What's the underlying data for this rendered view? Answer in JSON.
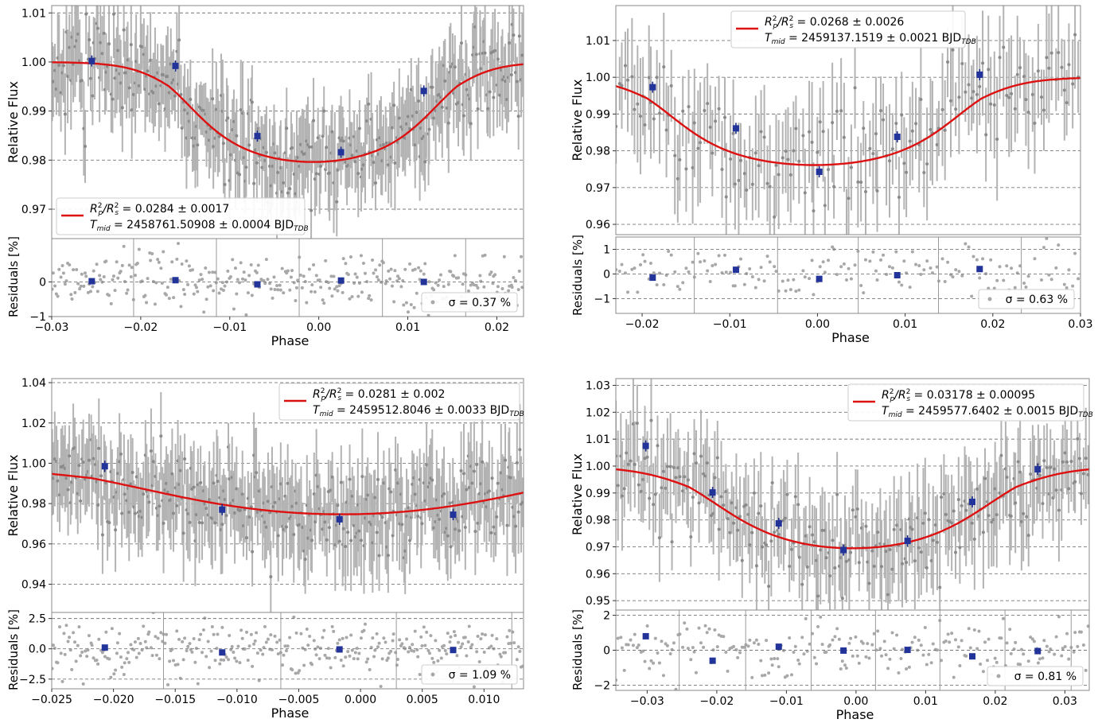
{
  "chart_data": [
    {
      "type": "scatter",
      "xlabel": "Phase",
      "ylabel": "Relative Flux",
      "residual_ylabel": "Residuals [%]",
      "xlim": [
        -0.03,
        0.023
      ],
      "ylim": [
        0.964,
        1.0115
      ],
      "yticks": [
        0.97,
        0.98,
        0.99,
        1.0,
        1.01
      ],
      "xticks": [
        -0.03,
        -0.02,
        -0.01,
        0.0,
        0.01,
        0.02
      ],
      "res_ylim": [
        -1.0,
        1.25
      ],
      "res_yticks": [
        -1,
        0
      ],
      "model": {
        "t1": -0.0158,
        "t2": 0.0145,
        "depth": 0.0205,
        "sharp": 0.0026
      },
      "binned": [
        {
          "x": -0.0255,
          "y": 1.0002,
          "res": 0.02
        },
        {
          "x": -0.0161,
          "y": 0.9992,
          "res": 0.05
        },
        {
          "x": -0.0069,
          "y": 0.9849,
          "res": -0.07
        },
        {
          "x": 0.0025,
          "y": 0.9816,
          "res": 0.04
        },
        {
          "x": 0.0118,
          "y": 0.9941,
          "res": 0.0
        }
      ],
      "legend": {
        "l1": " = 0.0284 ± 0.0017",
        "l2": " = 2458761.50908 ± 0.0004 BJD"
      },
      "sigma": "σ = 0.37 %",
      "scatter": {
        "n": 330,
        "noise": 0.0045,
        "err": 0.0075,
        "seed": 11
      }
    },
    {
      "type": "scatter",
      "xlabel": "Phase",
      "ylabel": "Relative Flux",
      "residual_ylabel": "Residuals [%]",
      "xlim": [
        -0.023,
        0.03
      ],
      "ylim": [
        0.9572,
        1.0195
      ],
      "yticks": [
        0.96,
        0.97,
        0.98,
        0.99,
        1.0,
        1.01
      ],
      "xticks": [
        -0.02,
        -0.01,
        0.0,
        0.01,
        0.02,
        0.03
      ],
      "xtick_labels": [
        "−0.02",
        "−0.01",
        "0.00",
        "0.01",
        "0.02",
        "0.03"
      ],
      "res_ylim": [
        -1.6,
        1.5
      ],
      "res_yticks": [
        -1,
        0,
        1
      ],
      "model": {
        "t1": -0.0182,
        "t2": 0.0175,
        "depth": 0.024,
        "sharp": 0.003
      },
      "binned": [
        {
          "x": -0.0188,
          "y": 0.9973,
          "res": -0.15
        },
        {
          "x": -0.0093,
          "y": 0.9861,
          "res": 0.17
        },
        {
          "x": 0.0002,
          "y": 0.9743,
          "res": -0.2
        },
        {
          "x": 0.0091,
          "y": 0.9838,
          "res": -0.05
        },
        {
          "x": 0.0185,
          "y": 1.0007,
          "res": 0.2
        }
      ],
      "legend": {
        "l1": " = 0.0268 ± 0.0026",
        "l2": " = 2459137.1519 ± 0.0021 BJD"
      },
      "sigma": "σ = 0.63 %",
      "scatter": {
        "n": 160,
        "noise": 0.007,
        "err": 0.012,
        "seed": 23
      }
    },
    {
      "type": "scatter",
      "xlabel": "Phase",
      "ylabel": "Relative Flux",
      "residual_ylabel": "Residuals [%]",
      "xlim": [
        -0.025,
        0.0132
      ],
      "ylim": [
        0.926,
        1.042
      ],
      "yticks": [
        0.94,
        0.96,
        0.98,
        1.0,
        1.02,
        1.04
      ],
      "xticks": [
        -0.025,
        -0.02,
        -0.015,
        -0.01,
        -0.005,
        0.0,
        0.005,
        0.01
      ],
      "xtick_labels": [
        "−0.025",
        "−0.020",
        "−0.015",
        "−0.010",
        "−0.005",
        "0.000",
        "0.005",
        "0.010"
      ],
      "res_ylim": [
        -3.3,
        3.0
      ],
      "res_yticks": [
        -2.5,
        0.0,
        2.5
      ],
      "res_ytick_labels": [
        "−2.5",
        "0.0",
        "2.5"
      ],
      "model": {
        "t1": -0.0205,
        "t2": 0.0175,
        "depth": 0.0275,
        "sharp": 0.006
      },
      "binned": [
        {
          "x": -0.0207,
          "y": 0.9985,
          "res": 0.1
        },
        {
          "x": -0.0112,
          "y": 0.977,
          "res": -0.3
        },
        {
          "x": -0.0017,
          "y": 0.9722,
          "res": -0.05
        },
        {
          "x": 0.0075,
          "y": 0.9745,
          "res": -0.1
        }
      ],
      "legend": {
        "l1": " = 0.0281 ± 0.002",
        "l2": " = 2459512.8046 ± 0.0033 BJD"
      },
      "sigma": "σ = 1.09 %",
      "scatter": {
        "n": 330,
        "noise": 0.011,
        "err": 0.018,
        "seed": 37
      }
    },
    {
      "type": "scatter",
      "xlabel": "Phase",
      "ylabel": "Relative Flux",
      "residual_ylabel": "Residuals [%]",
      "xlim": [
        -0.0345,
        0.0335
      ],
      "ylim": [
        0.9465,
        1.0325
      ],
      "yticks": [
        0.95,
        0.96,
        0.97,
        0.98,
        0.99,
        1.0,
        1.01,
        1.02,
        1.03
      ],
      "xticks": [
        -0.03,
        -0.02,
        -0.01,
        0.0,
        0.01,
        0.02,
        0.03
      ],
      "xtick_labels": [
        "−0.03",
        "−0.02",
        "−0.01",
        "0.00",
        "0.01",
        "0.02",
        "0.03"
      ],
      "res_ylim": [
        -2.3,
        2.3
      ],
      "res_yticks": [
        -2,
        0,
        2
      ],
      "model": {
        "t1": -0.0225,
        "t2": 0.0215,
        "depth": 0.031,
        "sharp": 0.0045
      },
      "binned": [
        {
          "x": -0.0302,
          "y": 1.0075,
          "res": 0.8
        },
        {
          "x": -0.0206,
          "y": 0.9902,
          "res": -0.6
        },
        {
          "x": -0.0111,
          "y": 0.9787,
          "res": 0.2
        },
        {
          "x": -0.0018,
          "y": 0.9688,
          "res": -0.02
        },
        {
          "x": 0.0074,
          "y": 0.9722,
          "res": 0.02
        },
        {
          "x": 0.0167,
          "y": 0.9867,
          "res": -0.35
        },
        {
          "x": 0.0261,
          "y": 0.9988,
          "res": -0.05
        }
      ],
      "legend": {
        "l1": " = 0.03178 ± 0.00095",
        "l2": " = 2459577.6402 ± 0.0015 BJD"
      },
      "sigma": "σ = 0.81 %",
      "scatter": {
        "n": 230,
        "noise": 0.0085,
        "err": 0.015,
        "seed": 53
      }
    }
  ]
}
